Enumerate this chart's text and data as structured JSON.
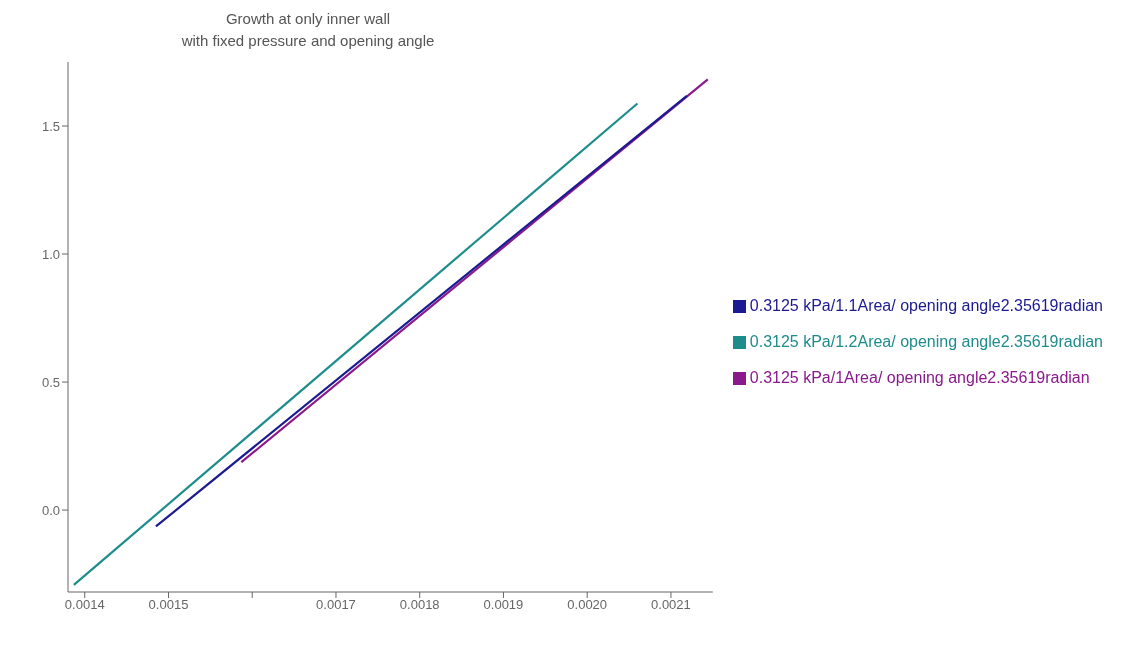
{
  "chart_data": {
    "type": "line",
    "title": "Growth at only inner wall\nwith fixed pressure and opening angle",
    "xlim": [
      0.00138,
      0.00215
    ],
    "ylim": [
      -0.32,
      1.75
    ],
    "xticks": [
      {
        "value": 0.0014,
        "label": "0.0014"
      },
      {
        "value": 0.0015,
        "label": "0.0015"
      },
      {
        "value": 0.0016,
        "label": null
      },
      {
        "value": 0.0017,
        "label": "0.0017"
      },
      {
        "value": 0.0018,
        "label": "0.0018"
      },
      {
        "value": 0.0019,
        "label": "0.0019"
      },
      {
        "value": 0.002,
        "label": "0.0020"
      },
      {
        "value": 0.0021,
        "label": "0.0021"
      }
    ],
    "yticks": [
      {
        "value": 0,
        "label": "0.0"
      },
      {
        "value": 0.5,
        "label": "0.5"
      },
      {
        "value": 1,
        "label": "1.0"
      },
      {
        "value": 1.5,
        "label": "1.5"
      }
    ],
    "legend": "right",
    "grid": false,
    "marker": "none",
    "line_style": "solid",
    "series": [
      {
        "name": "0.3125 kPa/1Area/ opening angle2.35619radian",
        "color": "#8a1a8c",
        "x": [
          0.001587,
          0.002144
        ],
        "values": [
          0.187,
          1.682
        ]
      },
      {
        "name": "0.3125 kPa/1.1Area/ opening angle2.35619radian",
        "color": "#1c1a90",
        "x": [
          0.001485,
          0.002119
        ],
        "values": [
          -0.064,
          1.618
        ]
      },
      {
        "name": "0.3125 kPa/1.2Area/ opening angle2.35619radian",
        "color": "#1f8c8c",
        "x": [
          0.001387,
          0.00206
        ],
        "values": [
          -0.292,
          1.588
        ]
      }
    ]
  }
}
